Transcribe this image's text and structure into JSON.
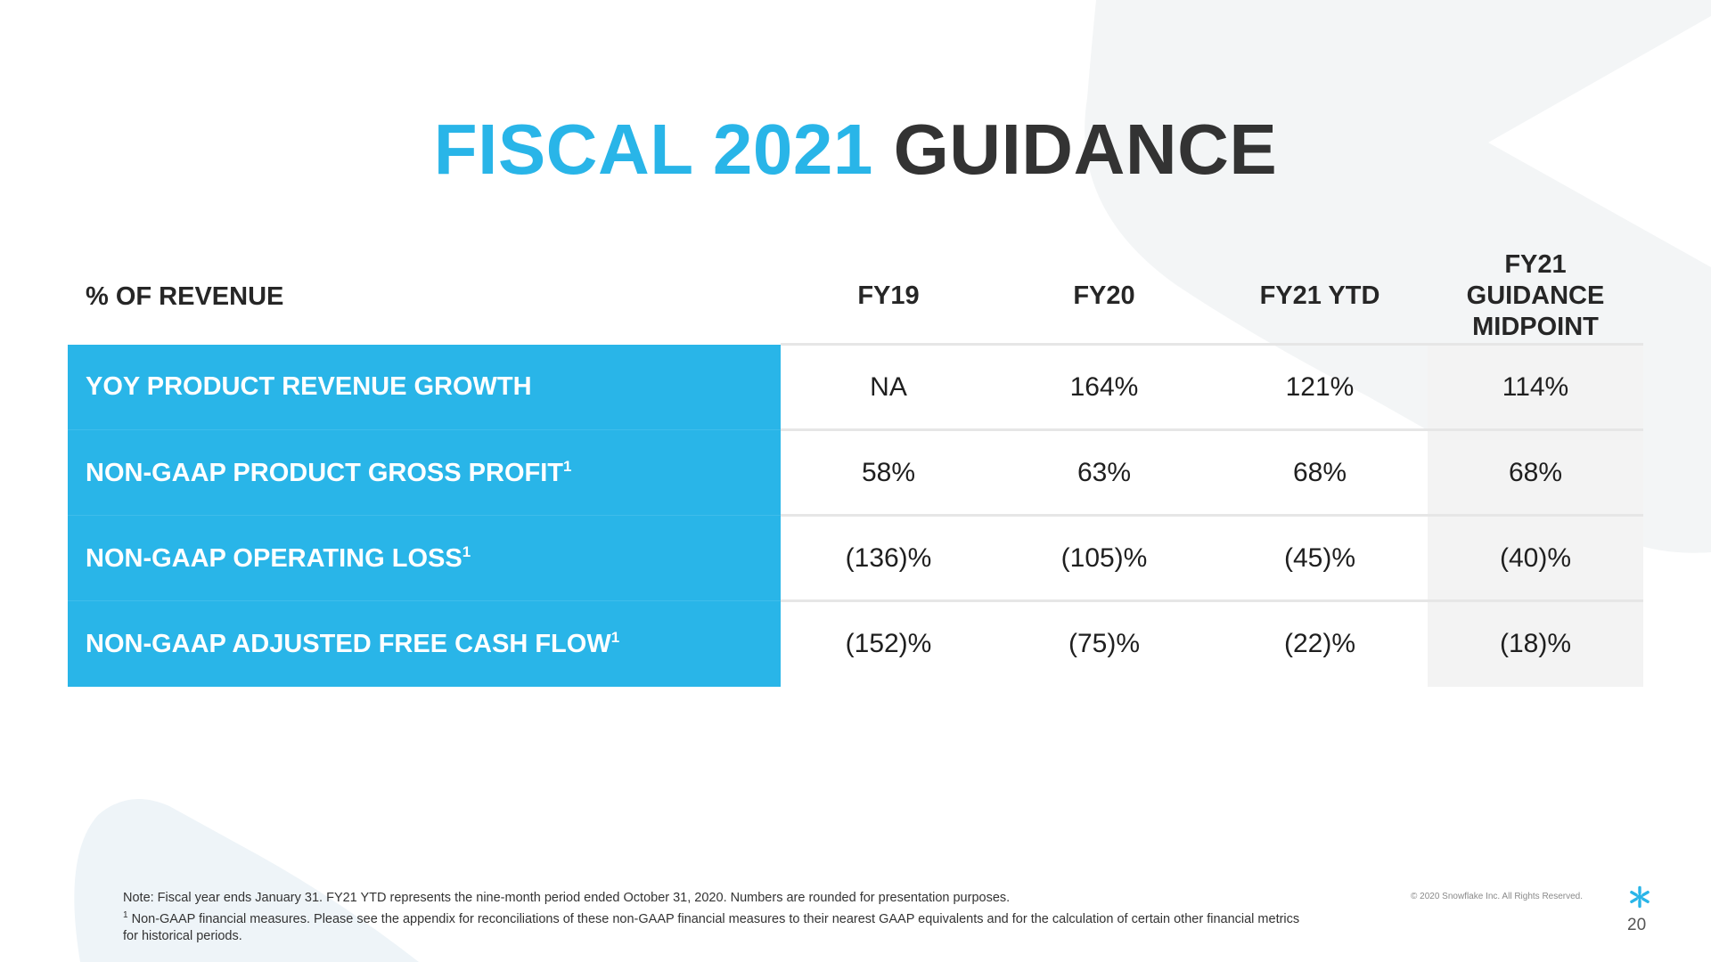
{
  "title": {
    "accent": "FISCAL 2021",
    "main": "GUIDANCE"
  },
  "table": {
    "metric_header": "% OF REVENUE",
    "columns": [
      "FY19",
      "FY20",
      "FY21 YTD",
      "FY21 GUIDANCE MIDPOINT"
    ],
    "rows": [
      {
        "label": "YOY PRODUCT REVENUE GROWTH",
        "sup": "",
        "values": [
          "NA",
          "164%",
          "121%",
          "114%"
        ]
      },
      {
        "label": "NON-GAAP PRODUCT GROSS PROFIT",
        "sup": "1",
        "values": [
          "58%",
          "63%",
          "68%",
          "68%"
        ]
      },
      {
        "label": "NON-GAAP OPERATING LOSS",
        "sup": "1",
        "values": [
          "(136)%",
          "(105)%",
          "(45)%",
          "(40)%"
        ]
      },
      {
        "label": "NON-GAAP ADJUSTED FREE CASH FLOW",
        "sup": "1",
        "values": [
          "(152)%",
          "(75)%",
          "(22)%",
          "(18)%"
        ]
      }
    ]
  },
  "footnotes": {
    "note": "Note: Fiscal year ends January 31.  FY21 YTD represents the nine-month period ended October 31, 2020. Numbers are rounded for presentation purposes.",
    "fn1_marker": "1",
    "fn1_text": " Non-GAAP financial measures. Please see the appendix for reconciliations of these non-GAAP financial measures to their nearest GAAP equivalents and for the calculation of certain other financial metrics for historical periods."
  },
  "copyright": "© 2020 Snowflake Inc. All Rights Reserved.",
  "page_number": "20",
  "colors": {
    "accent": "#29b5e8",
    "title_dark": "#333333",
    "midpoint_column": "#f3f3f3"
  },
  "icons": {
    "logo": "snowflake-logo-icon"
  }
}
